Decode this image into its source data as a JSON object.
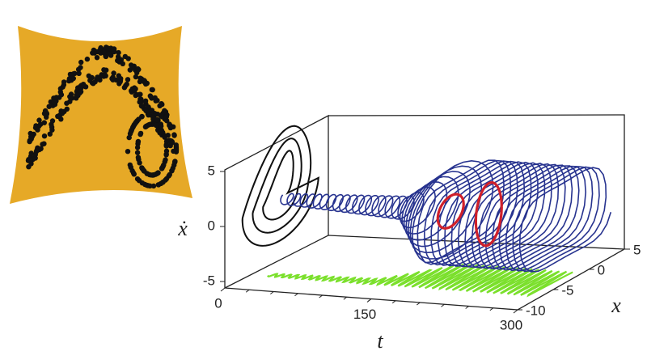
{
  "plot": {
    "t_axis": {
      "label": "t",
      "ticks": [
        0,
        150,
        300
      ]
    },
    "x_axis": {
      "label": "x",
      "ticks": [
        5,
        0,
        -5,
        -10
      ]
    },
    "xdot_axis": {
      "label": "ẋ",
      "ticks": [
        5,
        0,
        -5
      ]
    }
  }
}
